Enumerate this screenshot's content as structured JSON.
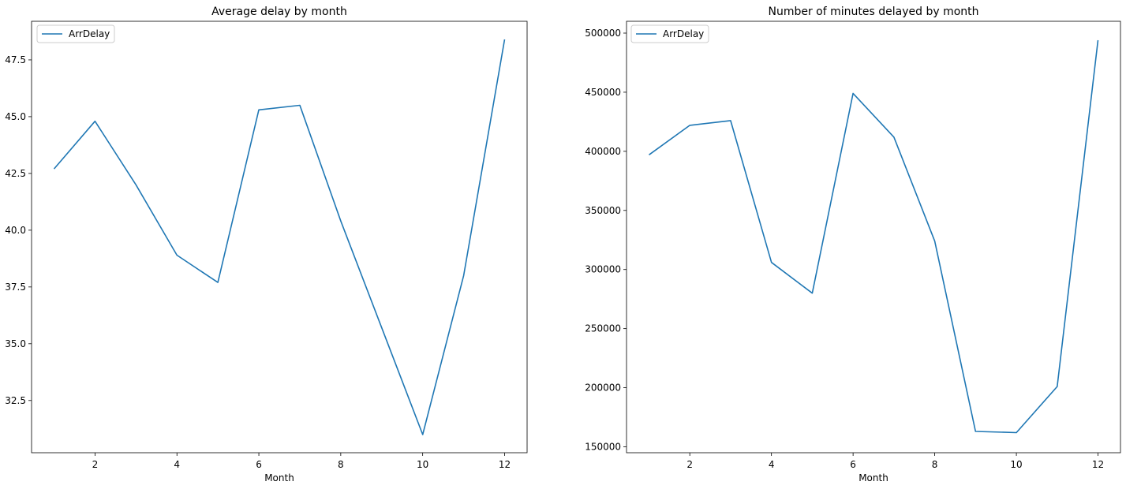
{
  "chart_data": [
    {
      "type": "line",
      "title": "Average delay by month",
      "xlabel": "Month",
      "ylabel": "",
      "x": [
        1,
        2,
        3,
        4,
        5,
        6,
        7,
        8,
        9,
        10,
        11,
        12
      ],
      "xlim": [
        0.45,
        12.55
      ],
      "ylim": [
        30.2,
        49.2
      ],
      "xticks": [
        2,
        4,
        6,
        8,
        10,
        12
      ],
      "xtick_labels": [
        "2",
        "4",
        "6",
        "8",
        "10",
        "12"
      ],
      "yticks": [
        32.5,
        35.0,
        37.5,
        40.0,
        42.5,
        45.0,
        47.5
      ],
      "ytick_labels": [
        "32.5",
        "35.0",
        "37.5",
        "40.0",
        "42.5",
        "45.0",
        "47.5"
      ],
      "grid": false,
      "legend_position": "upper-left",
      "series": [
        {
          "name": "ArrDelay",
          "color": "#1f77b4",
          "values": [
            42.7,
            44.8,
            42.0,
            38.9,
            37.7,
            45.3,
            45.5,
            40.4,
            35.7,
            31.0,
            38.0,
            48.4
          ]
        }
      ]
    },
    {
      "type": "line",
      "title": "Number of minutes delayed by month",
      "xlabel": "Month",
      "ylabel": "",
      "x": [
        1,
        2,
        3,
        4,
        5,
        6,
        7,
        8,
        9,
        10,
        11,
        12
      ],
      "xlim": [
        0.45,
        12.55
      ],
      "ylim": [
        145000,
        510000
      ],
      "xticks": [
        2,
        4,
        6,
        8,
        10,
        12
      ],
      "xtick_labels": [
        "2",
        "4",
        "6",
        "8",
        "10",
        "12"
      ],
      "yticks": [
        150000,
        200000,
        250000,
        300000,
        350000,
        400000,
        450000,
        500000
      ],
      "ytick_labels": [
        "150000",
        "200000",
        "250000",
        "300000",
        "350000",
        "400000",
        "450000",
        "500000"
      ],
      "grid": false,
      "legend_position": "upper-left",
      "series": [
        {
          "name": "ArrDelay",
          "color": "#1f77b4",
          "values": [
            397000,
            422000,
            426000,
            306000,
            280000,
            449000,
            412000,
            324000,
            163000,
            162000,
            201000,
            494000
          ]
        }
      ]
    }
  ]
}
